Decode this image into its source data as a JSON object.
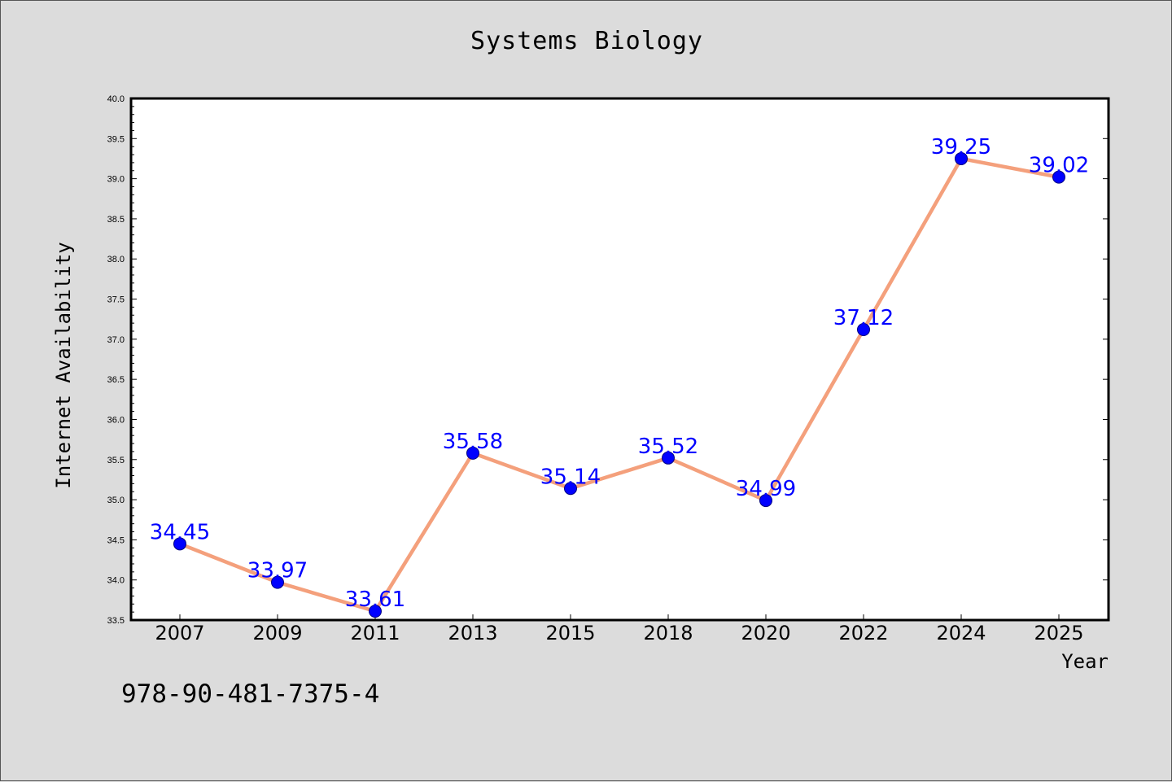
{
  "chart_data": {
    "type": "line",
    "title": "Systems Biology",
    "xlabel": "Year",
    "ylabel": "Internet Availability",
    "categories": [
      "2007",
      "2009",
      "2011",
      "2013",
      "2015",
      "2018",
      "2020",
      "2022",
      "2024",
      "2025"
    ],
    "series": [
      {
        "values": [
          34.45,
          33.97,
          33.61,
          35.58,
          35.14,
          35.52,
          34.99,
          37.12,
          39.25,
          39.02
        ],
        "labels": [
          "34.45",
          "33.97",
          "33.61",
          "35.58",
          "35.14",
          "35.52",
          "34.99",
          "37.12",
          "39.25",
          "39.02"
        ]
      }
    ],
    "ylim": [
      33.5,
      40.0
    ],
    "yticks": [
      "33.5",
      "34.0",
      "34.5",
      "35.0",
      "35.5",
      "36.0",
      "36.5",
      "37.0",
      "37.5",
      "38.0",
      "38.5",
      "39.0",
      "39.5",
      "40.0"
    ],
    "grid": false,
    "colors": {
      "line": "#f4a07c",
      "marker": "#0000ff",
      "marker_edge": "#000080",
      "data_label": "#0000ff",
      "background": "#dcdcdc",
      "plot_area": "#ffffff"
    }
  },
  "footer_code": "978-90-481-7375-4"
}
